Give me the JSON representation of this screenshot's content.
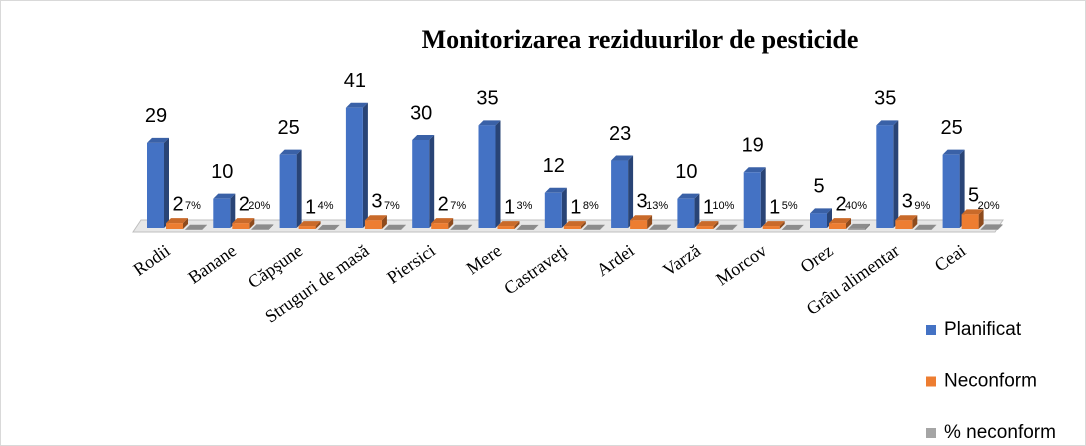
{
  "chart_data": {
    "type": "bar3d",
    "title": "Monitorizarea reziduurilor de pesticide",
    "categories": [
      "Rodii",
      "Banane",
      "Căpşune",
      "Struguri de masă",
      "Piersici",
      "Mere",
      "Castraveţi",
      "Ardei",
      "Varză",
      "Morcov",
      "Orez",
      "Grâu alimentar",
      "Ceai"
    ],
    "series": [
      {
        "name": "Planificat",
        "color": "#4472c4",
        "values": [
          29,
          10,
          25,
          41,
          30,
          35,
          12,
          23,
          10,
          19,
          5,
          35,
          25
        ]
      },
      {
        "name": "Neconform",
        "color": "#ed7d31",
        "values": [
          2,
          2,
          1,
          3,
          2,
          1,
          1,
          3,
          1,
          1,
          2,
          3,
          5
        ]
      },
      {
        "name": "% neconform",
        "color": "#a5a5a5",
        "values": [
          0.07,
          0.2,
          0.04,
          0.07,
          0.07,
          0.03,
          0.08,
          0.13,
          0.1,
          0.05,
          0.4,
          0.09,
          0.2
        ],
        "value_labels": [
          "7%",
          "20%",
          "4%",
          "7%",
          "7%",
          "3%",
          "8%",
          "13%",
          "10%",
          "5%",
          "40%",
          "9%",
          "20%"
        ]
      }
    ],
    "ylim": [
      0,
      45
    ],
    "legend": "right"
  }
}
